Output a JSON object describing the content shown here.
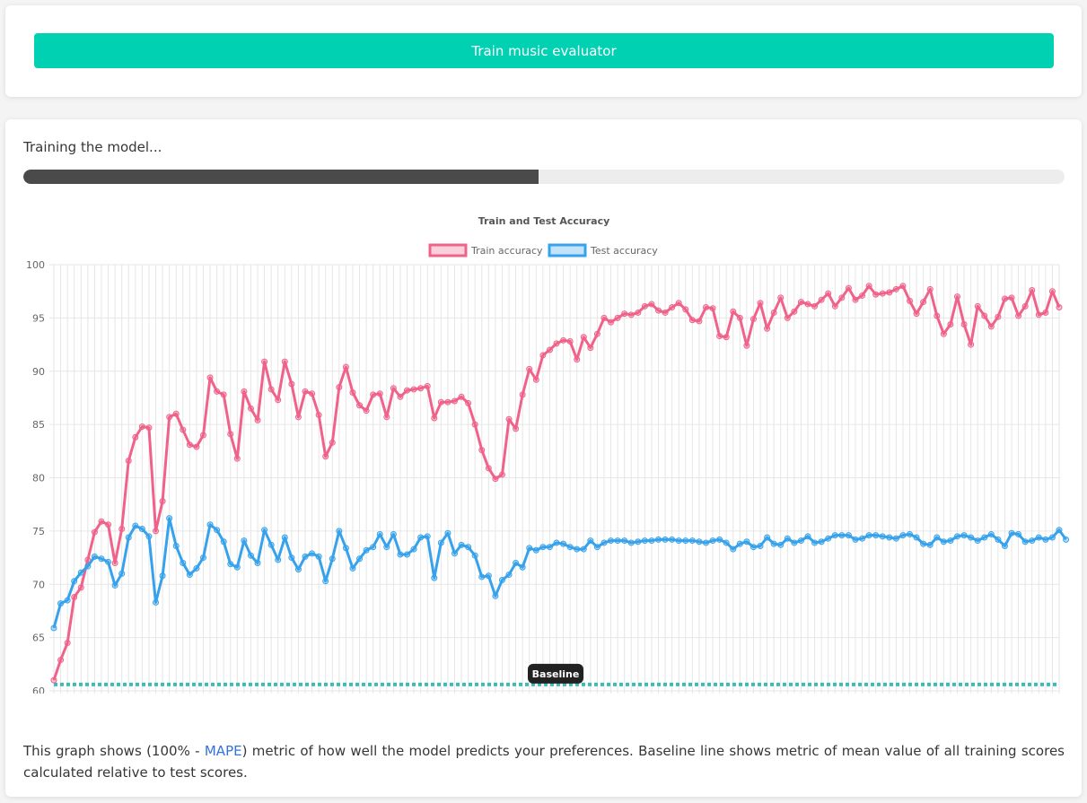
{
  "train_button": {
    "label": "Train music evaluator"
  },
  "status": {
    "text": "Training the model..."
  },
  "progress": {
    "value": 0.495
  },
  "description": {
    "before": "This graph shows (100% - ",
    "link": "MAPE",
    "after": ") metric of how well the model predicts your preferences. Baseline line shows metric of mean value of all training scores calculated relative to test scores."
  },
  "chart_data": {
    "type": "line",
    "title": "Train and Test Accuracy",
    "legend_position": "top",
    "grid": true,
    "ylim": [
      60,
      100
    ],
    "yticks": [
      60,
      65,
      70,
      75,
      80,
      85,
      90,
      95,
      100
    ],
    "xlim": [
      0,
      148
    ],
    "xtick_step": 3,
    "baseline": {
      "label": "Baseline",
      "value": 60.6,
      "color": "#3cbcb8"
    },
    "series": [
      {
        "name": "Train accuracy",
        "color": "#f0628a",
        "values": [
          61.0,
          62.9,
          64.5,
          68.8,
          69.7,
          72.3,
          74.9,
          75.9,
          75.6,
          72.0,
          75.2,
          81.6,
          83.8,
          84.8,
          84.7,
          75.0,
          77.8,
          85.7,
          86.0,
          84.5,
          83.1,
          82.9,
          84.0,
          89.4,
          88.1,
          87.8,
          84.1,
          81.8,
          88.1,
          86.5,
          85.4,
          90.9,
          88.3,
          87.3,
          90.9,
          88.8,
          85.7,
          88.1,
          87.9,
          85.9,
          82.0,
          83.3,
          88.5,
          90.4,
          88.0,
          86.8,
          86.3,
          87.8,
          87.9,
          85.7,
          88.4,
          87.6,
          88.2,
          88.3,
          88.4,
          88.6,
          85.6,
          87.1,
          87.1,
          87.2,
          87.6,
          87.0,
          85.0,
          82.6,
          80.9,
          79.9,
          80.3,
          85.5,
          84.6,
          87.8,
          90.2,
          89.2,
          91.5,
          92.0,
          92.6,
          92.9,
          92.8,
          91.1,
          93.2,
          92.2,
          93.5,
          95.0,
          94.6,
          95.0,
          95.4,
          95.3,
          95.5,
          96.1,
          96.3,
          95.7,
          95.5,
          96.0,
          96.4,
          95.8,
          94.8,
          94.7,
          96.0,
          95.9,
          93.3,
          93.2,
          95.6,
          95.0,
          92.4,
          94.9,
          96.4,
          94.0,
          95.5,
          96.9,
          95.0,
          95.6,
          96.5,
          96.3,
          96.1,
          96.7,
          97.3,
          96.1,
          96.9,
          97.8,
          96.7,
          97.1,
          98.0,
          97.2,
          97.3,
          97.4,
          97.7,
          98.0,
          96.6,
          95.4,
          96.5,
          97.7,
          95.2,
          93.5,
          94.4,
          97.0,
          94.4,
          92.5,
          96.1,
          95.2,
          94.2,
          95.1,
          96.8,
          96.9,
          95.2,
          96.1,
          97.6,
          95.3,
          95.5,
          97.5,
          96.0
        ]
      },
      {
        "name": "Test accuracy",
        "color": "#36a2eb",
        "values": [
          65.9,
          68.2,
          68.5,
          70.3,
          71.1,
          71.7,
          72.6,
          72.4,
          72.1,
          69.9,
          71.0,
          74.4,
          75.5,
          75.2,
          74.5,
          68.3,
          70.8,
          76.2,
          73.6,
          72.0,
          70.9,
          71.5,
          72.5,
          75.6,
          75.1,
          74.0,
          71.9,
          71.6,
          74.1,
          72.7,
          72.0,
          75.1,
          73.7,
          72.3,
          74.4,
          72.5,
          71.4,
          72.6,
          72.9,
          72.6,
          70.3,
          72.4,
          75.0,
          73.4,
          71.5,
          72.4,
          73.2,
          73.5,
          74.7,
          73.5,
          74.7,
          72.8,
          72.8,
          73.3,
          74.4,
          74.5,
          70.6,
          73.9,
          74.8,
          72.9,
          73.7,
          73.5,
          72.7,
          70.7,
          70.8,
          68.9,
          70.4,
          70.9,
          72.0,
          71.6,
          73.4,
          73.2,
          73.5,
          73.5,
          73.9,
          73.8,
          73.5,
          73.3,
          73.3,
          74.1,
          73.5,
          73.9,
          74.1,
          74.1,
          74.1,
          73.9,
          74.0,
          74.1,
          74.1,
          74.2,
          74.2,
          74.2,
          74.1,
          74.1,
          74.1,
          74.0,
          73.9,
          74.1,
          74.2,
          73.9,
          73.3,
          73.8,
          74.0,
          73.5,
          73.6,
          74.4,
          73.8,
          73.7,
          74.3,
          73.9,
          74.1,
          74.5,
          73.9,
          74.0,
          74.3,
          74.6,
          74.6,
          74.6,
          74.2,
          74.3,
          74.6,
          74.6,
          74.5,
          74.4,
          74.3,
          74.6,
          74.7,
          74.4,
          73.8,
          73.7,
          74.4,
          74.0,
          74.1,
          74.5,
          74.6,
          74.4,
          74.1,
          74.4,
          74.7,
          74.2,
          73.6,
          74.8,
          74.7,
          74.0,
          74.1,
          74.4,
          74.2,
          74.4,
          75.1,
          74.2
        ]
      }
    ]
  }
}
